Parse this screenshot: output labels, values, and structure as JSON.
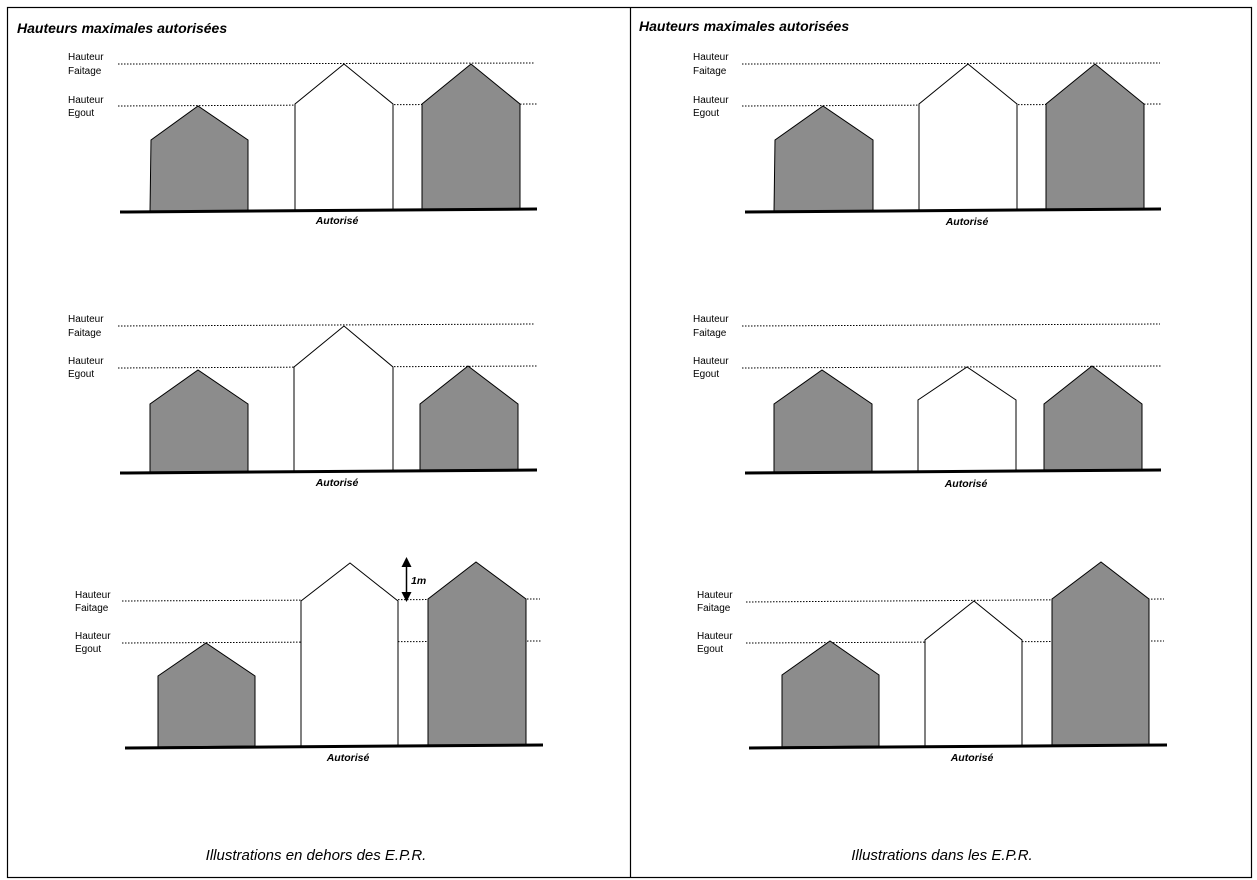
{
  "panels": [
    {
      "title": "Hauteurs  maximales autorisées",
      "footer": "Illustrations en dehors des E.P.R.",
      "rows": [
        {
          "faitage_label": [
            "Hauteur",
            "Faitage"
          ],
          "egout_label": [
            "Hauteur",
            "Egout"
          ],
          "caption": "Autorisé"
        },
        {
          "faitage_label": [
            "Hauteur",
            "Faitage"
          ],
          "egout_label": [
            "Hauteur",
            "Egout"
          ],
          "caption": "Autorisé"
        },
        {
          "faitage_label": [
            "Hauteur",
            "Faitage"
          ],
          "egout_label": [
            "Hauteur",
            "Egout"
          ],
          "caption": "Autorisé",
          "dimension_label": "1m"
        }
      ]
    },
    {
      "title": "Hauteurs  maximales autorisées",
      "footer": "Illustrations dans les E.P.R.",
      "rows": [
        {
          "faitage_label": [
            "Hauteur",
            "Faitage"
          ],
          "egout_label": [
            "Hauteur",
            "Egout"
          ],
          "caption": "Autorisé"
        },
        {
          "faitage_label": [
            "Hauteur",
            "Faitage"
          ],
          "egout_label": [
            "Hauteur",
            "Egout"
          ],
          "caption": "Autorisé"
        },
        {
          "faitage_label": [
            "Hauteur",
            "Faitage"
          ],
          "egout_label": [
            "Hauteur",
            "Egout"
          ],
          "caption": "Autorisé"
        }
      ]
    }
  ],
  "colors": {
    "building_fill": "#8c8c8c",
    "building_outline": "#000000",
    "background": "#ffffff"
  }
}
